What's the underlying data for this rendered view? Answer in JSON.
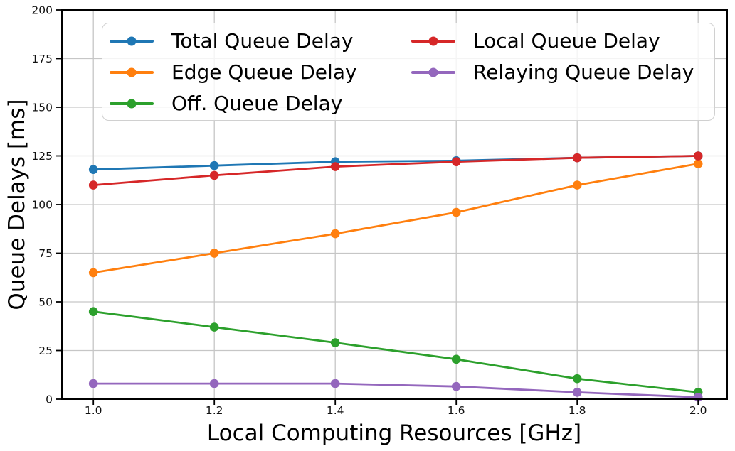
{
  "chart_data": {
    "type": "line",
    "x": [
      1.0,
      1.2,
      1.4,
      1.6,
      1.8,
      2.0
    ],
    "series": [
      {
        "name": "Total Queue Delay",
        "color": "#1f77b4",
        "marker": "circle",
        "values": [
          118,
          120,
          122,
          122.5,
          124,
          125
        ]
      },
      {
        "name": "Edge Queue Delay",
        "color": "#ff7f0e",
        "marker": "circle",
        "values": [
          65,
          75,
          85,
          96,
          110,
          121
        ]
      },
      {
        "name": "Off. Queue Delay",
        "color": "#2ca02c",
        "marker": "circle",
        "values": [
          45,
          37,
          29,
          20.5,
          10.5,
          3.5
        ]
      },
      {
        "name": "Local Queue Delay",
        "color": "#d62728",
        "marker": "circle",
        "values": [
          110,
          115,
          119.5,
          122,
          124,
          125
        ]
      },
      {
        "name": "Relaying Queue Delay",
        "color": "#9467bd",
        "marker": "circle",
        "values": [
          8,
          8,
          8,
          6.5,
          3.5,
          1
        ]
      }
    ],
    "title": "",
    "xlabel": "Local Computing Resources [GHz]",
    "ylabel": "Queue Delays [ms]",
    "xticks": [
      1.0,
      1.2,
      1.4,
      1.6,
      1.8,
      2.0
    ],
    "xtick_labels": [
      "1.0",
      "1.2",
      "1.4",
      "1.6",
      "1.8",
      "2.0"
    ],
    "yticks": [
      0,
      25,
      50,
      75,
      100,
      125,
      150,
      175,
      200
    ],
    "xlim": [
      0.948,
      2.048
    ],
    "ylim": [
      0,
      200
    ],
    "grid": true,
    "grid_color": "#c6c6c6",
    "legend": {
      "position": "upper left",
      "columns": 2,
      "column_fill_rows": 3
    }
  }
}
